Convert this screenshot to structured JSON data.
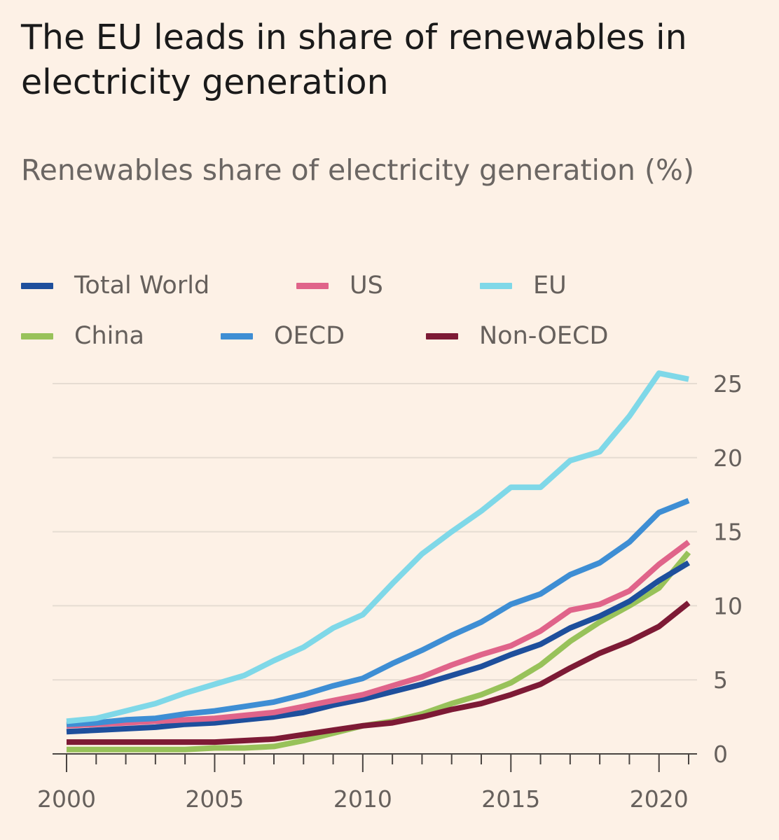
{
  "header": {
    "title": "The EU leads in share of renewables in electricity generation",
    "subtitle": "Renewables share of electricity generation (%)"
  },
  "chart_data": {
    "type": "line",
    "title": "The EU leads in share of renewables in electricity generation",
    "subtitle": "Renewables share of electricity generation (%)",
    "xlabel": "",
    "ylabel": "",
    "x": [
      2000,
      2001,
      2002,
      2003,
      2004,
      2005,
      2006,
      2007,
      2008,
      2009,
      2010,
      2011,
      2012,
      2013,
      2014,
      2015,
      2016,
      2017,
      2018,
      2019,
      2020,
      2021
    ],
    "xlim": [
      2000,
      2021
    ],
    "ylim": [
      0,
      25
    ],
    "x_ticks": [
      "2000",
      "2005",
      "2010",
      "2015",
      "2020"
    ],
    "y_ticks": [
      "0",
      "5",
      "10",
      "15",
      "20",
      "25"
    ],
    "y_axis_position": "right",
    "grid": "horizontal",
    "legend_position": "top",
    "series": [
      {
        "name": "Total World",
        "color": "#1e4f9c",
        "values": [
          1.5,
          1.6,
          1.7,
          1.8,
          2.0,
          2.1,
          2.3,
          2.5,
          2.8,
          3.3,
          3.7,
          4.2,
          4.7,
          5.3,
          5.9,
          6.7,
          7.4,
          8.5,
          9.3,
          10.3,
          11.7,
          12.9
        ]
      },
      {
        "name": "US",
        "color": "#e0648a",
        "values": [
          1.9,
          2.0,
          2.1,
          2.2,
          2.3,
          2.4,
          2.6,
          2.8,
          3.2,
          3.6,
          4.0,
          4.6,
          5.2,
          6.0,
          6.7,
          7.3,
          8.3,
          9.7,
          10.1,
          11.0,
          12.8,
          14.3
        ]
      },
      {
        "name": "EU",
        "color": "#7fd8e8",
        "values": [
          2.2,
          2.4,
          2.9,
          3.4,
          4.1,
          4.7,
          5.3,
          6.3,
          7.2,
          8.5,
          9.4,
          11.5,
          13.5,
          15.0,
          16.4,
          18.0,
          18.0,
          19.8,
          20.4,
          22.8,
          25.7,
          25.3
        ]
      },
      {
        "name": "China",
        "color": "#98c25a",
        "values": [
          0.3,
          0.3,
          0.3,
          0.3,
          0.3,
          0.4,
          0.4,
          0.5,
          0.9,
          1.4,
          1.9,
          2.2,
          2.7,
          3.4,
          4.0,
          4.8,
          6.0,
          7.6,
          8.9,
          10.0,
          11.2,
          13.6
        ]
      },
      {
        "name": "OECD",
        "color": "#3e8ed4",
        "values": [
          2.0,
          2.1,
          2.3,
          2.4,
          2.7,
          2.9,
          3.2,
          3.5,
          4.0,
          4.6,
          5.1,
          6.1,
          7.0,
          8.0,
          8.9,
          10.1,
          10.8,
          12.1,
          12.9,
          14.3,
          16.3,
          17.1
        ]
      },
      {
        "name": "Non-OECD",
        "color": "#7d1a35",
        "values": [
          0.8,
          0.8,
          0.8,
          0.8,
          0.8,
          0.8,
          0.9,
          1.0,
          1.3,
          1.6,
          1.9,
          2.1,
          2.5,
          3.0,
          3.4,
          4.0,
          4.7,
          5.8,
          6.8,
          7.6,
          8.6,
          10.2
        ]
      }
    ]
  }
}
